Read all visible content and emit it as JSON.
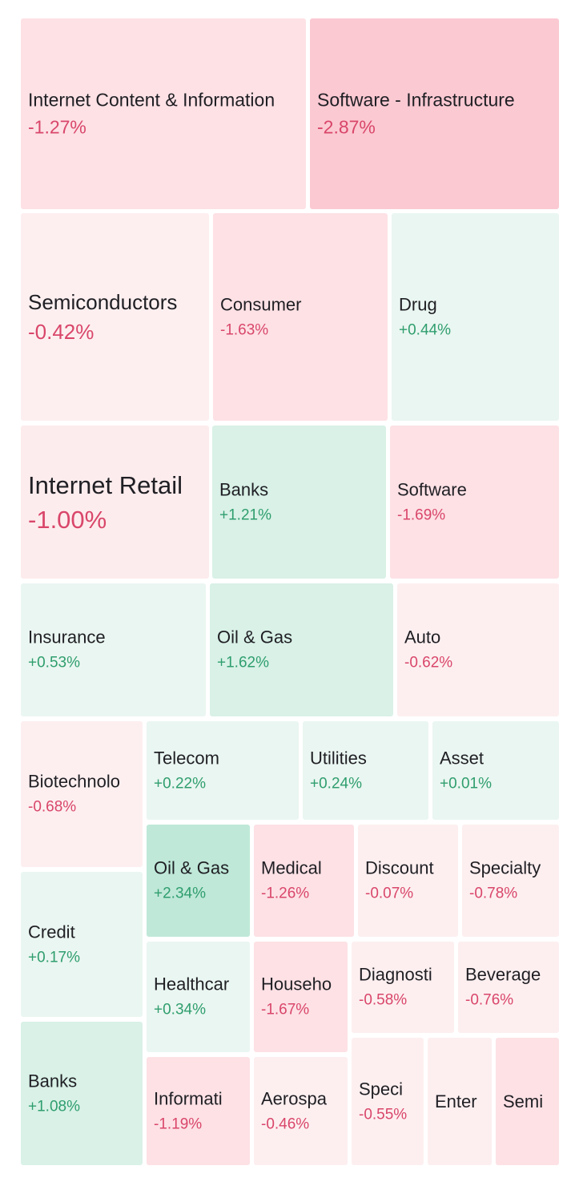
{
  "colors": {
    "down_text": "#d9466a",
    "up_text": "#2f9e6e"
  },
  "tiles": [
    {
      "name": "Internet Content & Information",
      "change": "-1.27%",
      "bg": "#fde1e5",
      "dir": "down"
    },
    {
      "name": "Software - Infrastructure",
      "change": "-2.87%",
      "bg": "#fbc9d2",
      "dir": "down"
    },
    {
      "name": "Semiconductors",
      "change": "-0.42%",
      "bg": "#fdeff0",
      "dir": "down"
    },
    {
      "name": "Consumer",
      "change": "-1.63%",
      "bg": "#fde1e5",
      "dir": "down"
    },
    {
      "name": "Drug",
      "change": "+0.44%",
      "bg": "#eaf6f1",
      "dir": "up"
    },
    {
      "name": "Internet Retail",
      "change": "-1.00%",
      "bg": "#fdeced",
      "dir": "down"
    },
    {
      "name": "Banks",
      "change": "+1.21%",
      "bg": "#d9f1e7",
      "dir": "up"
    },
    {
      "name": "Software",
      "change": "-1.69%",
      "bg": "#fde1e5",
      "dir": "down"
    },
    {
      "name": "Insurance",
      "change": "+0.53%",
      "bg": "#eaf6f1",
      "dir": "up"
    },
    {
      "name": "Oil & Gas",
      "change": "+1.62%",
      "bg": "#d9f1e7",
      "dir": "up"
    },
    {
      "name": "Auto",
      "change": "-0.62%",
      "bg": "#fdeff0",
      "dir": "down"
    },
    {
      "name": "Biotechnolo",
      "change": "-0.68%",
      "bg": "#fdeff0",
      "dir": "down"
    },
    {
      "name": "Telecom",
      "change": "+0.22%",
      "bg": "#eaf6f1",
      "dir": "up"
    },
    {
      "name": "Utilities",
      "change": "+0.24%",
      "bg": "#eaf6f1",
      "dir": "up"
    },
    {
      "name": "Asset",
      "change": "+0.01%",
      "bg": "#eaf6f1",
      "dir": "up"
    },
    {
      "name": "Credit",
      "change": "+0.17%",
      "bg": "#eaf6f1",
      "dir": "up"
    },
    {
      "name": "Oil & Gas",
      "change": "+2.34%",
      "bg": "#bfe8d8",
      "dir": "up"
    },
    {
      "name": "Medical",
      "change": "-1.26%",
      "bg": "#fde1e5",
      "dir": "down"
    },
    {
      "name": "Discount",
      "change": "-0.07%",
      "bg": "#fdeff0",
      "dir": "down"
    },
    {
      "name": "Specialty",
      "change": "-0.78%",
      "bg": "#fdeff0",
      "dir": "down"
    },
    {
      "name": "Healthcar",
      "change": "+0.34%",
      "bg": "#eaf6f1",
      "dir": "up"
    },
    {
      "name": "Househo",
      "change": "-1.67%",
      "bg": "#fde1e5",
      "dir": "down"
    },
    {
      "name": "Diagnosti",
      "change": "-0.58%",
      "bg": "#fdeff0",
      "dir": "down"
    },
    {
      "name": "Beverage",
      "change": "-0.76%",
      "bg": "#fdeff0",
      "dir": "down"
    },
    {
      "name": "Banks",
      "change": "+1.08%",
      "bg": "#d9f1e7",
      "dir": "up"
    },
    {
      "name": "Informati",
      "change": "-1.19%",
      "bg": "#fde1e5",
      "dir": "down"
    },
    {
      "name": "Aerospa",
      "change": "-0.46%",
      "bg": "#fdeff0",
      "dir": "down"
    },
    {
      "name": "Speci",
      "change": "-0.55%",
      "bg": "#fdeff0",
      "dir": "down"
    },
    {
      "name": "Enter",
      "change": "",
      "bg": "#fdeff0",
      "dir": "down"
    },
    {
      "name": "Semi",
      "change": "",
      "bg": "#fde1e5",
      "dir": "down"
    }
  ]
}
